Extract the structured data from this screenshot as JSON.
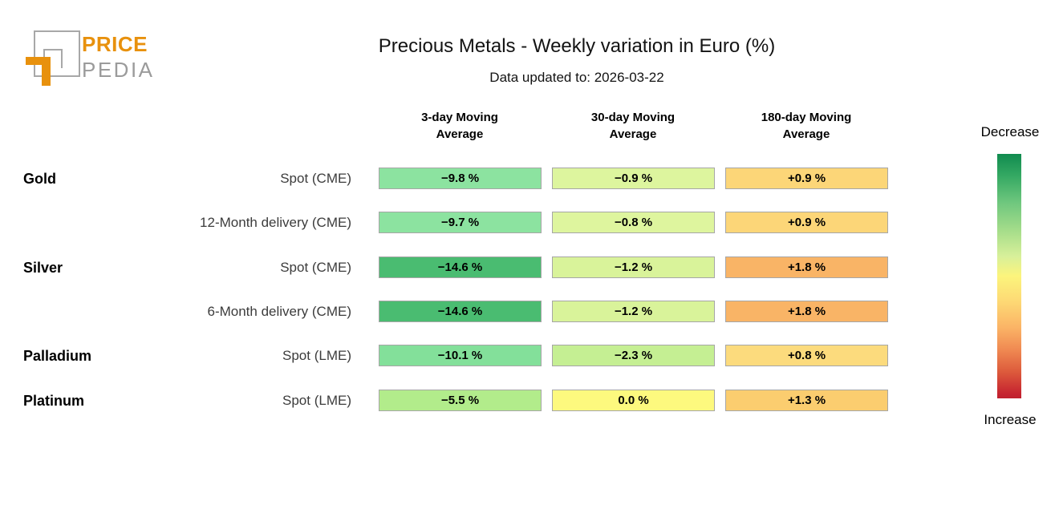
{
  "brand": {
    "line1": "PRICE",
    "line2": "PEDIA",
    "orange": "#E8910D",
    "gray": "#9B9B9B"
  },
  "chart_data": {
    "type": "heatmap",
    "title": "Precious Metals - Weekly variation in Euro (%)",
    "subtitle": "Data updated to: 2026-03-22",
    "columns": [
      "3-day Moving Average",
      "30-day Moving Average",
      "180-day Moving Average"
    ],
    "rows": [
      {
        "group": "Gold",
        "contract": "Spot (CME)",
        "values": [
          -9.8,
          -0.9,
          0.9
        ],
        "display": [
          "−9.8 %",
          "−0.9 %",
          "+0.9 %"
        ],
        "colors": [
          "#8ce3a0",
          "#ddf59e",
          "#fcd678"
        ]
      },
      {
        "group": "",
        "contract": "12-Month delivery (CME)",
        "values": [
          -9.7,
          -0.8,
          0.9
        ],
        "display": [
          "−9.7 %",
          "−0.8 %",
          "+0.9 %"
        ],
        "colors": [
          "#8ce3a0",
          "#def59e",
          "#fcd678"
        ]
      },
      {
        "group": "Silver",
        "contract": "Spot (CME)",
        "values": [
          -14.6,
          -1.2,
          1.8
        ],
        "display": [
          "−14.6 %",
          "−1.2 %",
          "+1.8 %"
        ],
        "colors": [
          "#4abc71",
          "#d9f39a",
          "#f9b466"
        ]
      },
      {
        "group": "",
        "contract": "6-Month delivery (CME)",
        "values": [
          -14.6,
          -1.2,
          1.8
        ],
        "display": [
          "−14.6 %",
          "−1.2 %",
          "+1.8 %"
        ],
        "colors": [
          "#4abc71",
          "#d9f39a",
          "#f9b466"
        ]
      },
      {
        "group": "Palladium",
        "contract": "Spot (LME)",
        "values": [
          -10.1,
          -2.3,
          0.8
        ],
        "display": [
          "−10.1 %",
          "−2.3 %",
          "+0.8 %"
        ],
        "colors": [
          "#83e09a",
          "#c5ef93",
          "#fcdb7d"
        ]
      },
      {
        "group": "Platinum",
        "contract": "Spot (LME)",
        "values": [
          -5.5,
          0.0,
          1.3
        ],
        "display": [
          "−5.5 %",
          "0.0 %",
          "+1.3 %"
        ],
        "colors": [
          "#b2ec8b",
          "#fdf97e",
          "#fbcd6f"
        ]
      }
    ],
    "colorbar": {
      "label_top": "Decrease",
      "label_bottom": "Increase",
      "gradient_stops": [
        "#108b4f 0%",
        "#35a963 9%",
        "#6fc77e 20%",
        "#a8de8b 32%",
        "#d8f09a 42%",
        "#fcf47c 50%",
        "#fdda75 60%",
        "#fbb466 71%",
        "#f08a52 80%",
        "#dd5b3c 89%",
        "#c62430 98%",
        "#c0202e 100%"
      ]
    },
    "layout": {
      "cell_lefts": [
        472,
        688,
        904
      ],
      "col_centers": [
        573,
        789,
        1005
      ],
      "row_tops": [
        209,
        264,
        320,
        375,
        430,
        486
      ],
      "legend_position": "right",
      "grid": false
    }
  }
}
